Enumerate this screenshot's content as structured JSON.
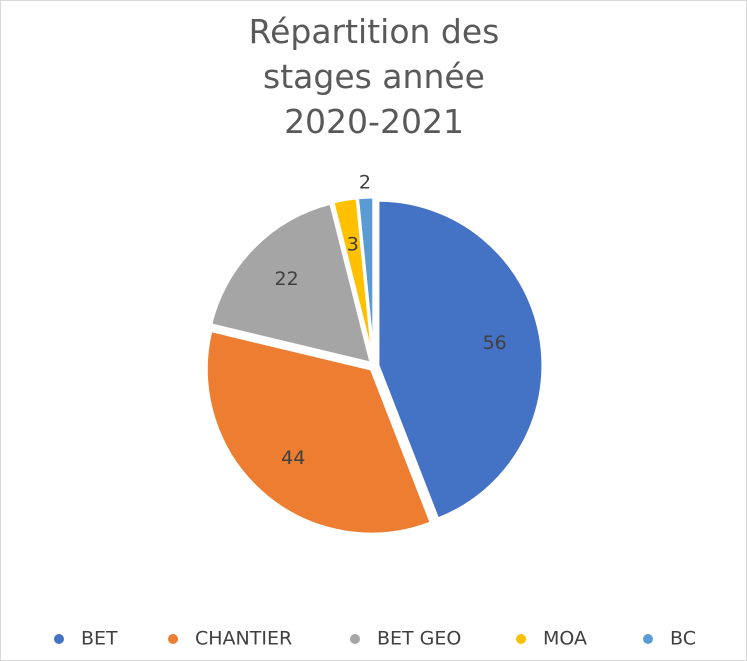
{
  "chart_data": {
    "type": "pie",
    "title": "Répartition des stages année 2020-2021",
    "categories": [
      "BET",
      "CHANTIER",
      "BET GEO",
      "MOA",
      "BC"
    ],
    "values": [
      56,
      44,
      22,
      3,
      2
    ],
    "colors": [
      "#4472c4",
      "#ed7d31",
      "#a5a5a5",
      "#ffc000",
      "#5b9bd5"
    ],
    "legend": "bottom"
  }
}
